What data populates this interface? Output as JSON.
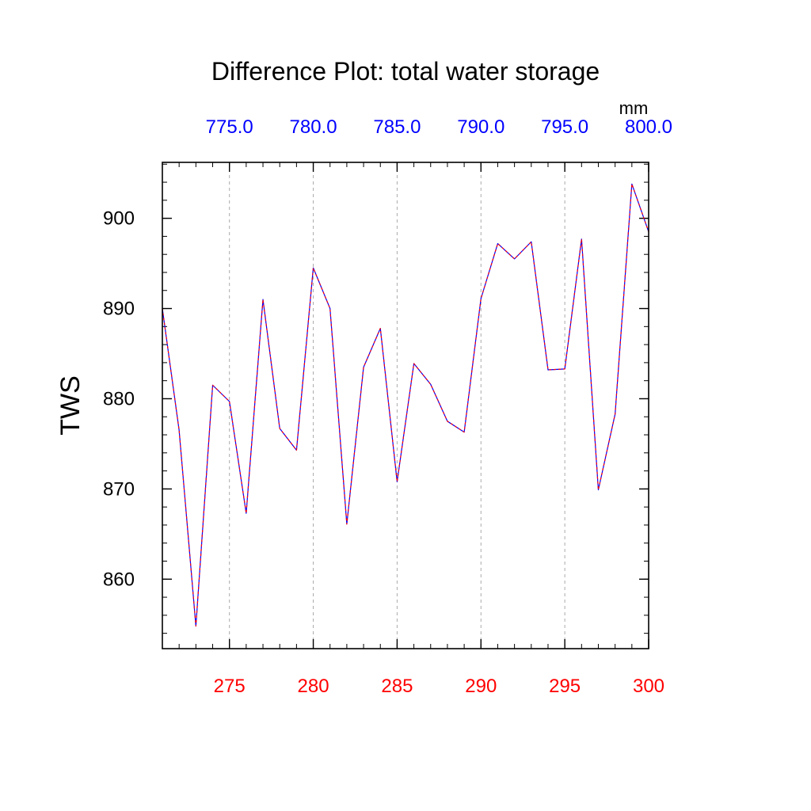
{
  "chart_data": {
    "type": "line",
    "title": "Difference Plot: total water storage",
    "ylabel": "TWS",
    "xlabel": "",
    "top_axis_unit": "mm",
    "xlim": [
      271,
      300
    ],
    "ylim": [
      852.3,
      906.2
    ],
    "x_ticks": [
      275,
      280,
      285,
      290,
      295,
      300
    ],
    "x_tick_labels": [
      "275",
      "280",
      "285",
      "290",
      "295",
      "300"
    ],
    "top_ticks": [
      275,
      280,
      285,
      290,
      295,
      300
    ],
    "top_tick_labels": [
      "775.0",
      "780.0",
      "785.0",
      "790.0",
      "795.0",
      "800.0"
    ],
    "y_ticks": [
      860,
      870,
      880,
      890,
      900
    ],
    "y_tick_labels": [
      "860",
      "870",
      "880",
      "890",
      "900"
    ],
    "grid": "vertical dashed at x ticks",
    "colors": {
      "bottom_ticks": "#ff0000",
      "top_ticks": "#0000ff",
      "series_a": "#0000ff",
      "series_b": "#ff0000",
      "grid": "#aaaaaa"
    },
    "x": [
      271,
      272,
      273,
      274,
      275,
      276,
      277,
      278,
      279,
      280,
      281,
      282,
      283,
      284,
      285,
      286,
      287,
      288,
      289,
      290,
      291,
      292,
      293,
      294,
      295,
      296,
      297,
      298,
      299,
      300
    ],
    "series": [
      {
        "name": "TWS",
        "values": [
          890.0,
          876.5,
          854.8,
          881.5,
          879.7,
          867.3,
          891.0,
          876.7,
          874.3,
          894.5,
          890.0,
          866.1,
          883.5,
          887.8,
          870.8,
          883.9,
          881.6,
          877.5,
          876.3,
          891.1,
          897.2,
          895.5,
          897.4,
          883.2,
          883.3,
          897.7,
          869.9,
          878.3,
          903.8,
          898.5
        ]
      }
    ]
  }
}
